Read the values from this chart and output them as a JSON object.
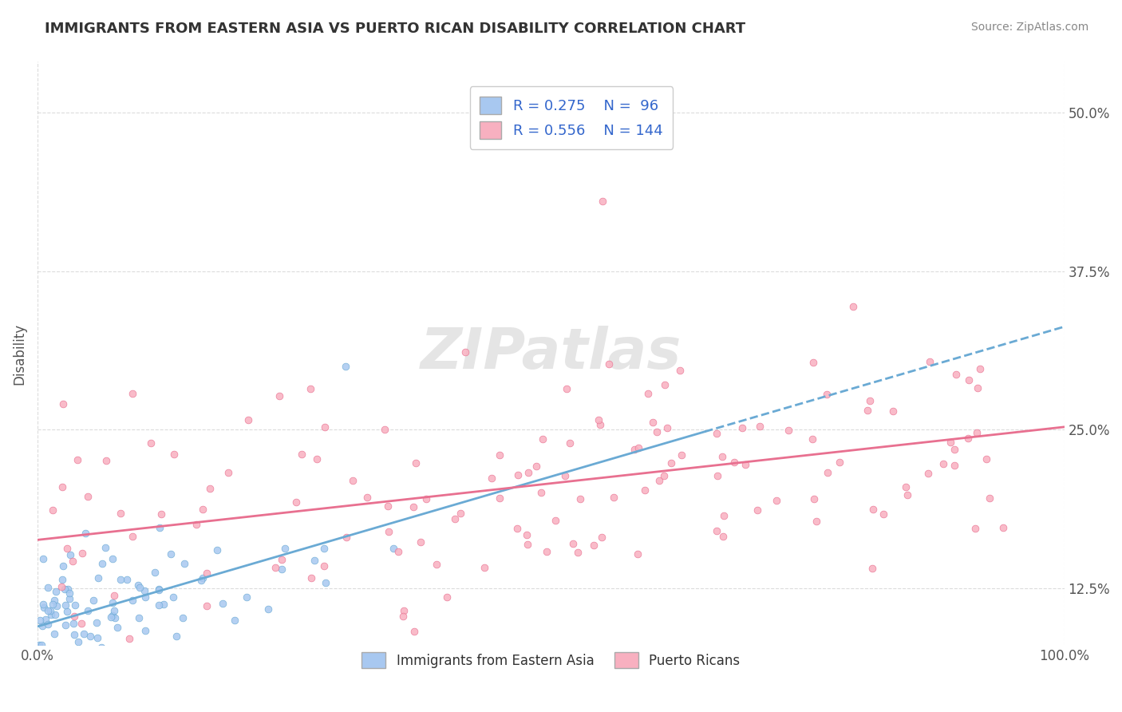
{
  "title": "IMMIGRANTS FROM EASTERN ASIA VS PUERTO RICAN DISABILITY CORRELATION CHART",
  "source": "Source: ZipAtlas.com",
  "xlabel": "",
  "ylabel": "Disability",
  "watermark": "ZIPatlas",
  "series": [
    {
      "name": "Immigrants from Eastern Asia",
      "color": "#a8c8f0",
      "edge_color": "#6aaad4",
      "R": 0.275,
      "N": 96,
      "trend_color": "#6aaad4",
      "trend_style": "-"
    },
    {
      "name": "Puerto Ricans",
      "color": "#f8b0c0",
      "edge_color": "#e87090",
      "R": 0.556,
      "N": 144,
      "trend_color": "#e87090",
      "trend_style": "-"
    }
  ],
  "xlim": [
    0.0,
    1.0
  ],
  "ylim": [
    0.08,
    0.54
  ],
  "yticks": [
    0.125,
    0.25,
    0.375,
    0.5
  ],
  "ytick_labels": [
    "12.5%",
    "25.0%",
    "37.5%",
    "50.0%"
  ],
  "xticks": [
    0.0,
    1.0
  ],
  "xtick_labels": [
    "0.0%",
    "100.0%"
  ],
  "grid_color": "#cccccc",
  "background_color": "#ffffff",
  "legend_R_color": "#3366cc",
  "legend_N_color": "#3366cc"
}
